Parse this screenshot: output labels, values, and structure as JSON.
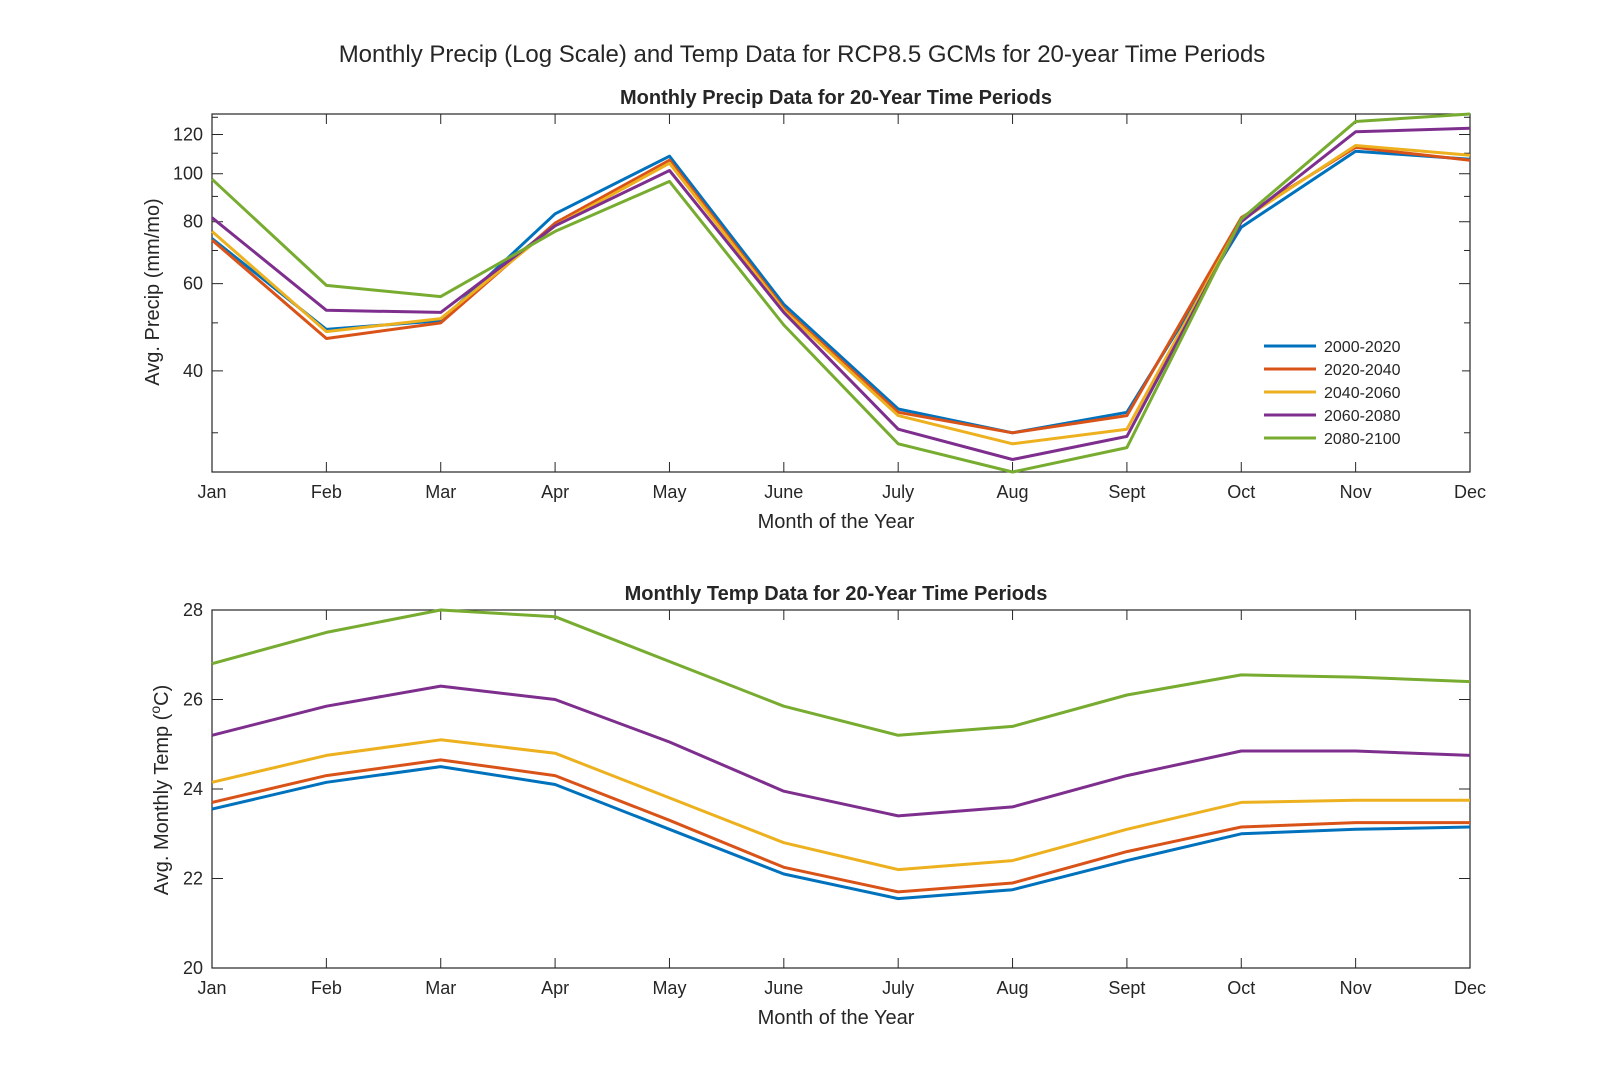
{
  "figure": {
    "title": "Monthly Precip (Log Scale) and Temp Data for RCP8.5 GCMs for 20-year Time Periods"
  },
  "colors": {
    "series": [
      "#0072BD",
      "#D95319",
      "#EDB120",
      "#7E2F8E",
      "#77AC30"
    ],
    "axis": "#262626",
    "background": "#ffffff"
  },
  "chart_data": [
    {
      "type": "line",
      "title": "Monthly Precip Data for 20-Year Time Periods",
      "xlabel": "Month of the Year",
      "ylabel": "Avg. Precip (mm/mo)",
      "yscale": "log",
      "ylim": [
        25,
        132
      ],
      "yticks": [
        40,
        60,
        80,
        100,
        120
      ],
      "categories": [
        "Jan",
        "Feb",
        "Mar",
        "Apr",
        "May",
        "June",
        "July",
        "Aug",
        "Sept",
        "Oct",
        "Nov",
        "Dec"
      ],
      "grid": false,
      "legend_position": "lower-right",
      "series": [
        {
          "name": "2000-2020",
          "values": [
            74,
            48.5,
            50.5,
            83,
            108.5,
            54.5,
            33.5,
            30,
            33,
            78,
            111,
            107
          ]
        },
        {
          "name": "2020-2040",
          "values": [
            73.5,
            46.5,
            50,
            79.5,
            106.5,
            53.5,
            33,
            30,
            32.5,
            81.5,
            113,
            106.5
          ]
        },
        {
          "name": "2040-2060",
          "values": [
            76.5,
            48,
            51,
            78.5,
            105,
            53,
            32.5,
            28.5,
            30.5,
            80.5,
            114,
            109
          ]
        },
        {
          "name": "2060-2080",
          "values": [
            81.5,
            53,
            52.5,
            78.5,
            101.5,
            52.5,
            30.5,
            26.5,
            29.5,
            80,
            121.5,
            123.5
          ]
        },
        {
          "name": "2080-2100",
          "values": [
            97.5,
            59.5,
            56.5,
            76.5,
            96.5,
            49.5,
            28.5,
            25,
            28,
            81,
            127.5,
            132
          ]
        }
      ]
    },
    {
      "type": "line",
      "title": "Monthly Temp Data for 20-Year Time Periods",
      "xlabel": "Month of the Year",
      "ylabel": "Avg. Monthly Temp (°C)",
      "ylabel_parts": {
        "before": "Avg. Monthly Temp (",
        "sup": "o",
        "after": "C)"
      },
      "yscale": "linear",
      "ylim": [
        20,
        28
      ],
      "yticks": [
        20,
        22,
        24,
        26,
        28
      ],
      "categories": [
        "Jan",
        "Feb",
        "Mar",
        "Apr",
        "May",
        "June",
        "July",
        "Aug",
        "Sept",
        "Oct",
        "Nov",
        "Dec"
      ],
      "grid": false,
      "series": [
        {
          "name": "2000-2020",
          "values": [
            23.55,
            24.15,
            24.5,
            24.1,
            23.1,
            22.1,
            21.55,
            21.75,
            22.4,
            23,
            23.1,
            23.15
          ]
        },
        {
          "name": "2020-2040",
          "values": [
            23.7,
            24.3,
            24.65,
            24.3,
            23.3,
            22.25,
            21.7,
            21.9,
            22.6,
            23.15,
            23.25,
            23.25
          ]
        },
        {
          "name": "2040-2060",
          "values": [
            24.15,
            24.75,
            25.1,
            24.8,
            23.8,
            22.8,
            22.2,
            22.4,
            23.1,
            23.7,
            23.75,
            23.75
          ]
        },
        {
          "name": "2060-2080",
          "values": [
            25.2,
            25.85,
            26.3,
            26,
            25.05,
            23.95,
            23.4,
            23.6,
            24.3,
            24.85,
            24.85,
            24.75
          ]
        },
        {
          "name": "2080-2100",
          "values": [
            26.8,
            27.5,
            28,
            27.85,
            26.85,
            25.85,
            25.2,
            25.4,
            26.1,
            26.55,
            26.5,
            26.4
          ]
        }
      ]
    }
  ]
}
